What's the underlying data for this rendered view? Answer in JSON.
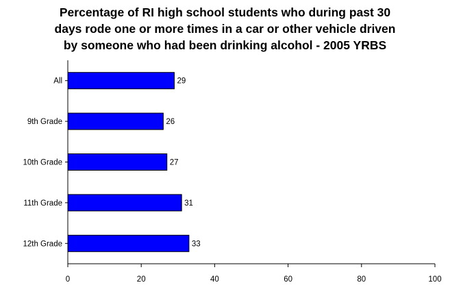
{
  "chart_data": {
    "type": "bar",
    "orientation": "horizontal",
    "title_lines": [
      "Percentage of RI high school students who during past 30",
      "days rode one or more times in a car or other vehicle driven",
      "by someone who had been drinking alcohol - 2005 YRBS"
    ],
    "categories": [
      "All",
      "9th Grade",
      "10th Grade",
      "11th Grade",
      "12th Grade"
    ],
    "values": [
      29,
      26,
      27,
      31,
      33
    ],
    "data_labels": [
      "29",
      "26",
      "27",
      "31",
      "33"
    ],
    "xlim": [
      0,
      100
    ],
    "x_ticks": [
      0,
      20,
      40,
      60,
      80,
      100
    ],
    "x_tick_labels": [
      "0",
      "20",
      "40",
      "60",
      "80",
      "100"
    ],
    "xlabel": "",
    "ylabel": "",
    "grid": false,
    "legend": "none",
    "bar_color": "#0000ff",
    "bar_edge_color": "#000000"
  }
}
